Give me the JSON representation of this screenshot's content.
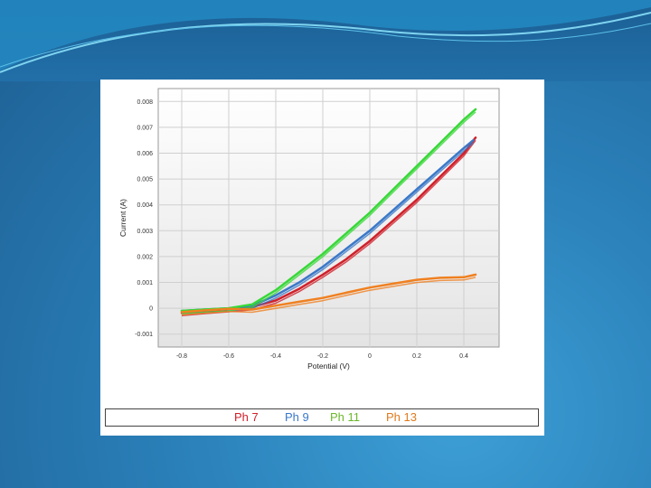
{
  "chart_data": {
    "type": "line",
    "xlabel": "Potential (V)",
    "ylabel": "Current (A)",
    "xlim": [
      -0.9,
      0.55
    ],
    "ylim": [
      -0.0015,
      0.0085
    ],
    "x_ticks": [
      "-0.8",
      "-0.6",
      "-0.4",
      "-0.2",
      "0",
      "0.2",
      "0.4"
    ],
    "x_tick_values": [
      -0.8,
      -0.6,
      -0.4,
      -0.2,
      0,
      0.2,
      0.4
    ],
    "y_ticks": [
      "0.008",
      "0.007",
      "0.006",
      "0.005",
      "0.004",
      "0.003",
      "0.002",
      "0.001",
      "0",
      "-0.001"
    ],
    "y_tick_values": [
      0.008,
      0.007,
      0.006,
      0.005,
      0.004,
      0.003,
      0.002,
      0.001,
      0,
      -0.001
    ],
    "grid": true,
    "series": [
      {
        "name": "Ph 7",
        "color": "#d0202a",
        "x": [
          -0.8,
          -0.7,
          -0.6,
          -0.5,
          -0.4,
          -0.3,
          -0.2,
          -0.1,
          0,
          0.1,
          0.2,
          0.3,
          0.4,
          0.45
        ],
        "y": [
          -0.00018,
          -0.0001,
          -3e-05,
          5e-05,
          0.0003,
          0.00075,
          0.0013,
          0.0019,
          0.0026,
          0.0034,
          0.0042,
          0.0051,
          0.006,
          0.0066
        ]
      },
      {
        "name": "Ph 9",
        "color": "#3a78c8",
        "x": [
          -0.8,
          -0.7,
          -0.6,
          -0.5,
          -0.4,
          -0.3,
          -0.2,
          -0.1,
          0,
          0.1,
          0.2,
          0.3,
          0.4,
          0.44
        ],
        "y": [
          -0.0001,
          -5e-05,
          0.0,
          0.0001,
          0.0005,
          0.001,
          0.0016,
          0.0023,
          0.003,
          0.0038,
          0.0046,
          0.0054,
          0.0062,
          0.0065
        ]
      },
      {
        "name": "Ph 11",
        "color": "#38d838",
        "x": [
          -0.8,
          -0.7,
          -0.6,
          -0.5,
          -0.4,
          -0.3,
          -0.2,
          -0.1,
          0,
          0.1,
          0.2,
          0.3,
          0.4,
          0.45
        ],
        "y": [
          -0.0001,
          -5e-05,
          0.0,
          0.00015,
          0.0007,
          0.0014,
          0.0021,
          0.0029,
          0.0037,
          0.0046,
          0.0055,
          0.0064,
          0.0073,
          0.0077
        ]
      },
      {
        "name": "Ph 13",
        "color": "#f08020",
        "x": [
          -0.8,
          -0.7,
          -0.6,
          -0.5,
          -0.4,
          -0.3,
          -0.2,
          -0.1,
          0,
          0.1,
          0.2,
          0.3,
          0.4,
          0.45
        ],
        "y": [
          -0.00015,
          -8e-05,
          -2e-05,
          -5e-05,
          0.0001,
          0.00025,
          0.0004,
          0.0006,
          0.0008,
          0.00095,
          0.0011,
          0.00118,
          0.0012,
          0.0013
        ]
      }
    ]
  },
  "legend": {
    "items": [
      {
        "label": "Ph 7",
        "color": "#d0202a"
      },
      {
        "label": "Ph 9",
        "color": "#3a78c8"
      },
      {
        "label": "Ph 11",
        "color": "#6cb82c"
      },
      {
        "label": "Ph 13",
        "color": "#e07a1c"
      }
    ]
  }
}
